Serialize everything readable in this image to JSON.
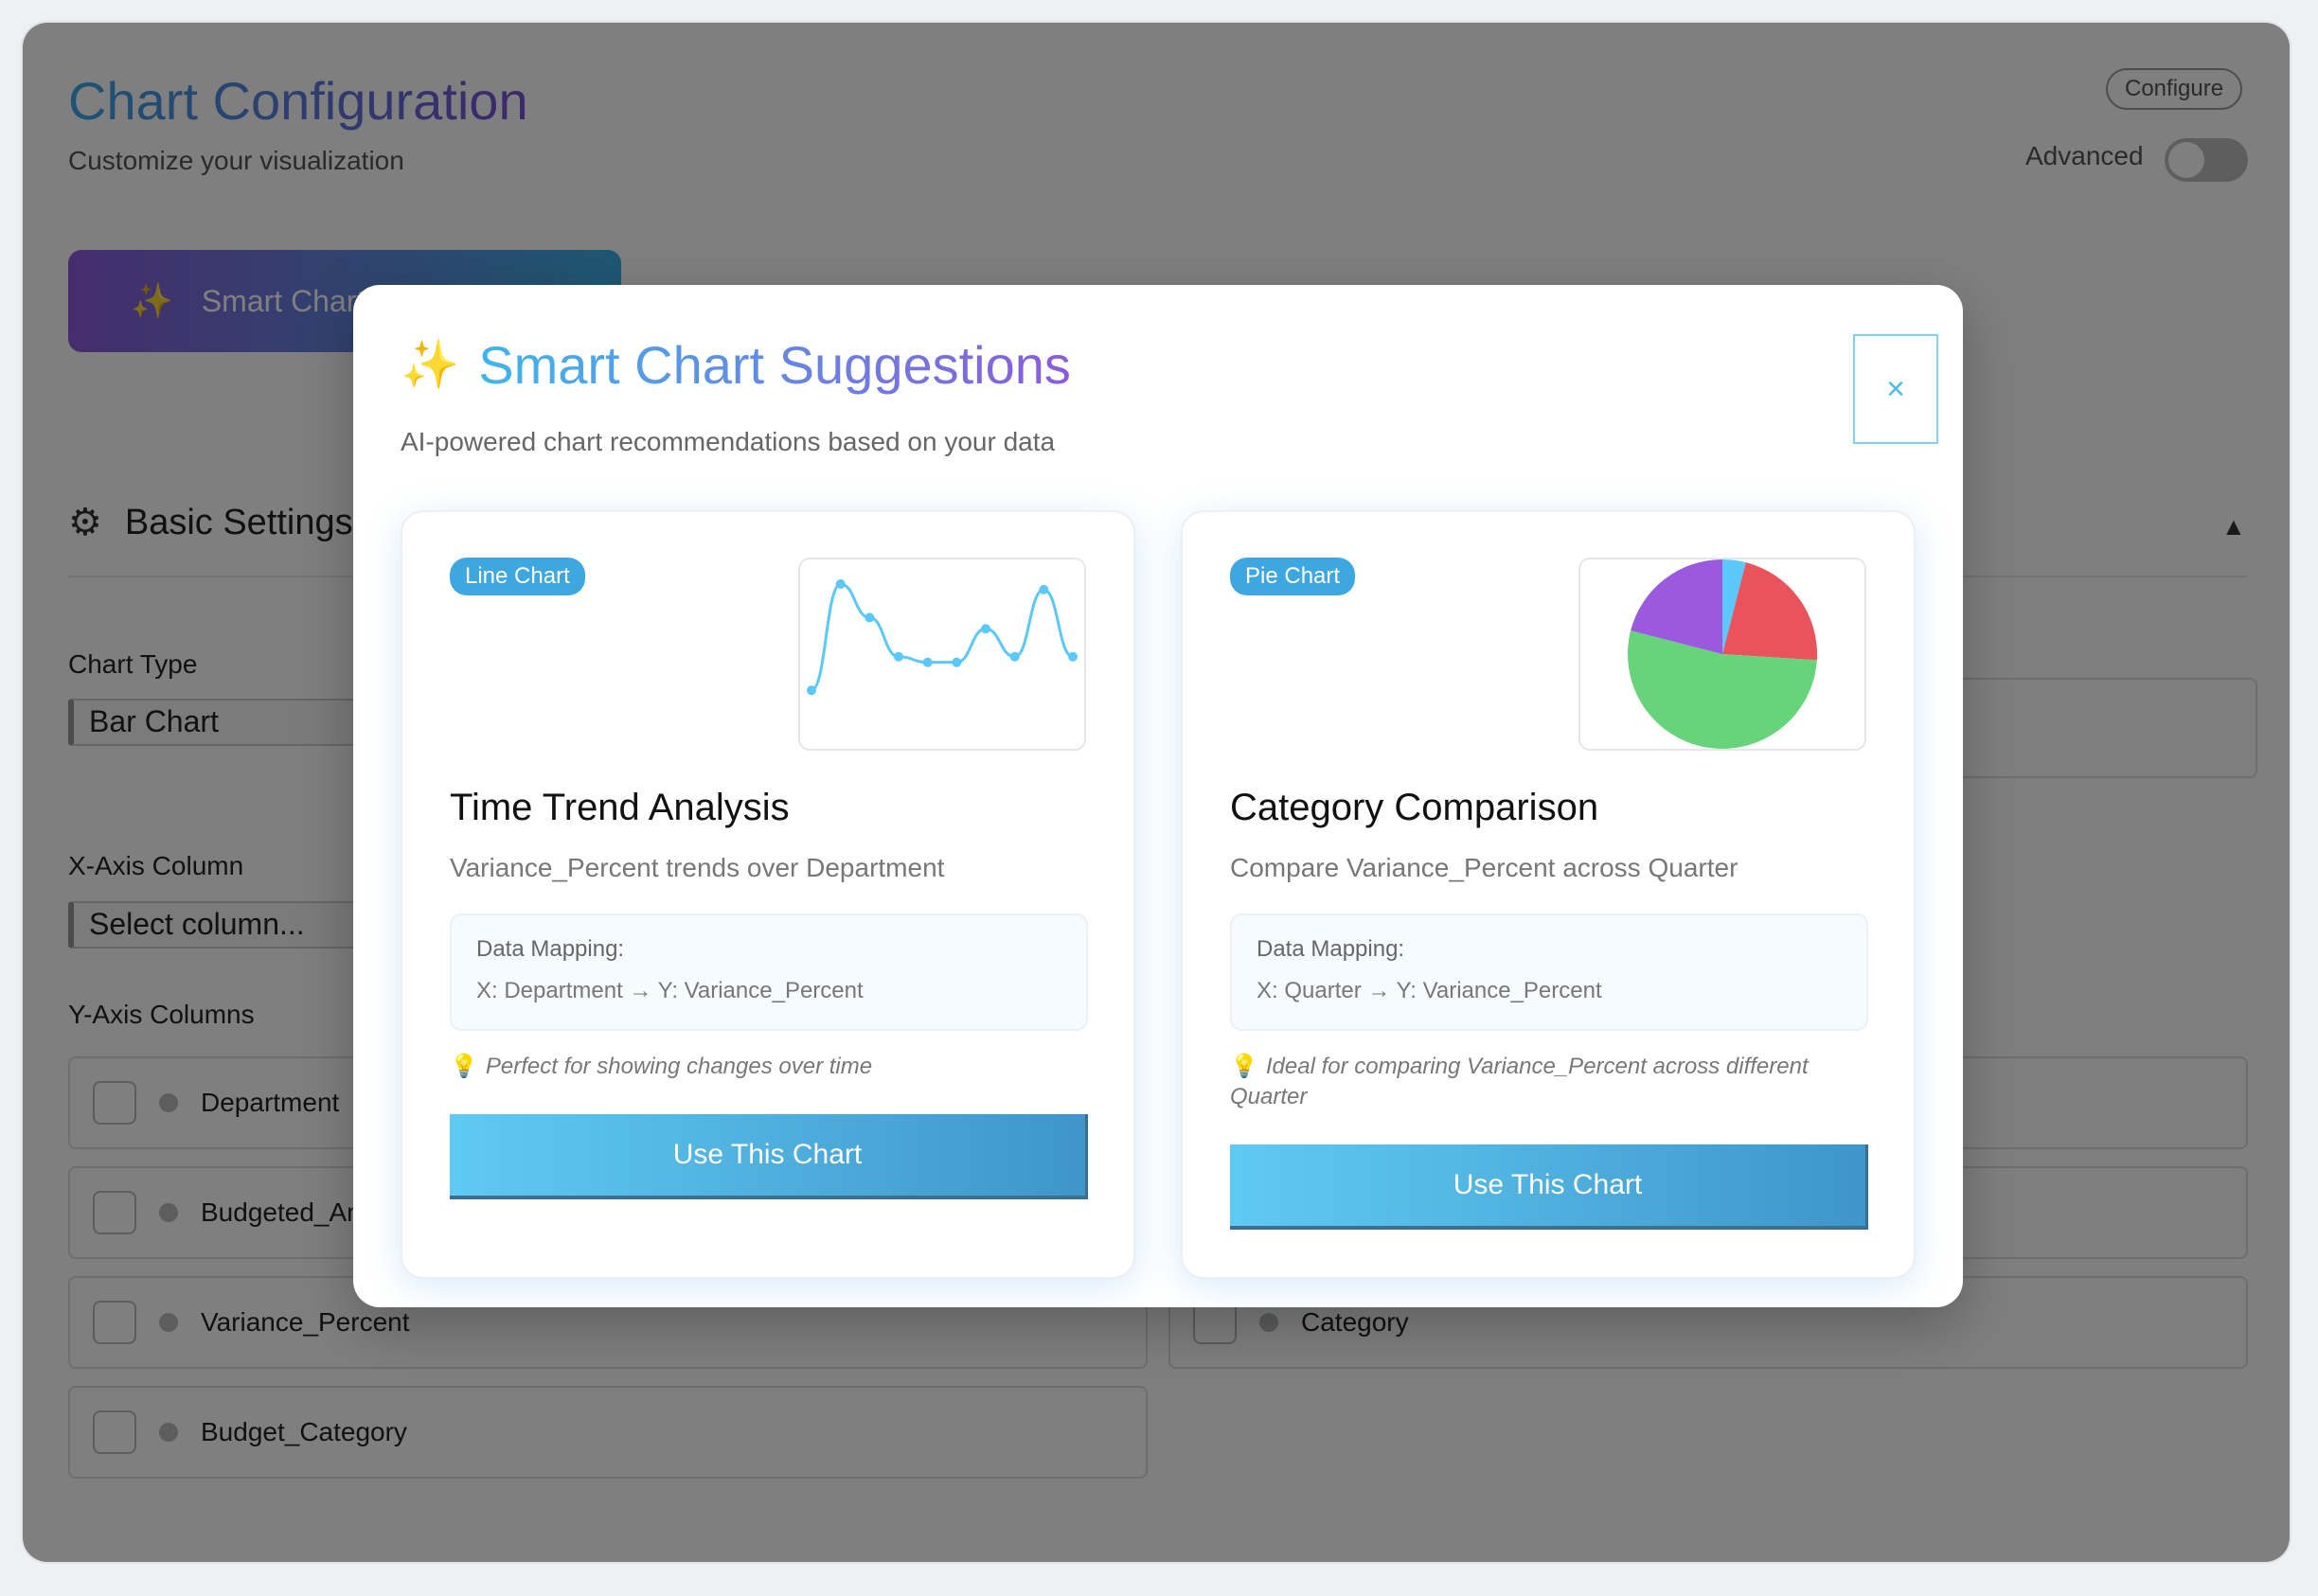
{
  "page": {
    "title": "Chart Configuration",
    "subtitle": "Customize your visualization",
    "configure_badge": "Configure",
    "advanced_label": "Advanced",
    "advanced_enabled": false,
    "smart_button_label": "Smart Chart Suggestions",
    "section_title": "Basic Settings",
    "chart_type_label": "Chart Type",
    "chart_type_value": "Bar Chart",
    "x_axis_label": "X-Axis Column",
    "x_axis_value": "Select column...",
    "y_axis_label": "Y-Axis Columns",
    "y_columns_left": [
      "Department",
      "Budgeted_Amount",
      "Variance_Percent",
      "Budget_Category"
    ],
    "y_columns_right": [
      "Category"
    ]
  },
  "modal": {
    "title": "Smart Chart Suggestions",
    "subtitle": "AI-powered chart recommendations based on your data",
    "close_label": "×",
    "cards": [
      {
        "badge": "Line Chart",
        "title": "Time Trend Analysis",
        "description": "Variance_Percent trends over Department",
        "mapping_label": "Data Mapping:",
        "mapping_value": "X: Department → Y: Variance_Percent",
        "tip": "Perfect for showing changes over time",
        "button": "Use This Chart",
        "preview_series": [
          2,
          21,
          15,
          8,
          7,
          7,
          13,
          8,
          20,
          8
        ]
      },
      {
        "badge": "Pie Chart",
        "title": "Category Comparison",
        "description": "Compare Variance_Percent across Quarter",
        "mapping_label": "Data Mapping:",
        "mapping_value": "X: Quarter → Y: Variance_Percent",
        "tip": "Ideal for comparing Variance_Percent across different Quarter",
        "button": "Use This Chart",
        "preview_slices": [
          {
            "value": 4,
            "color": "#5ac8fa"
          },
          {
            "value": 22,
            "color": "#e9535b"
          },
          {
            "value": 53,
            "color": "#67d37a"
          },
          {
            "value": 21,
            "color": "#9b59e0"
          }
        ]
      }
    ]
  },
  "colors": {
    "accent_blue": "#3fa7e0",
    "accent_purple": "#8b5bd9",
    "line_stroke": "#5ac8fa"
  }
}
